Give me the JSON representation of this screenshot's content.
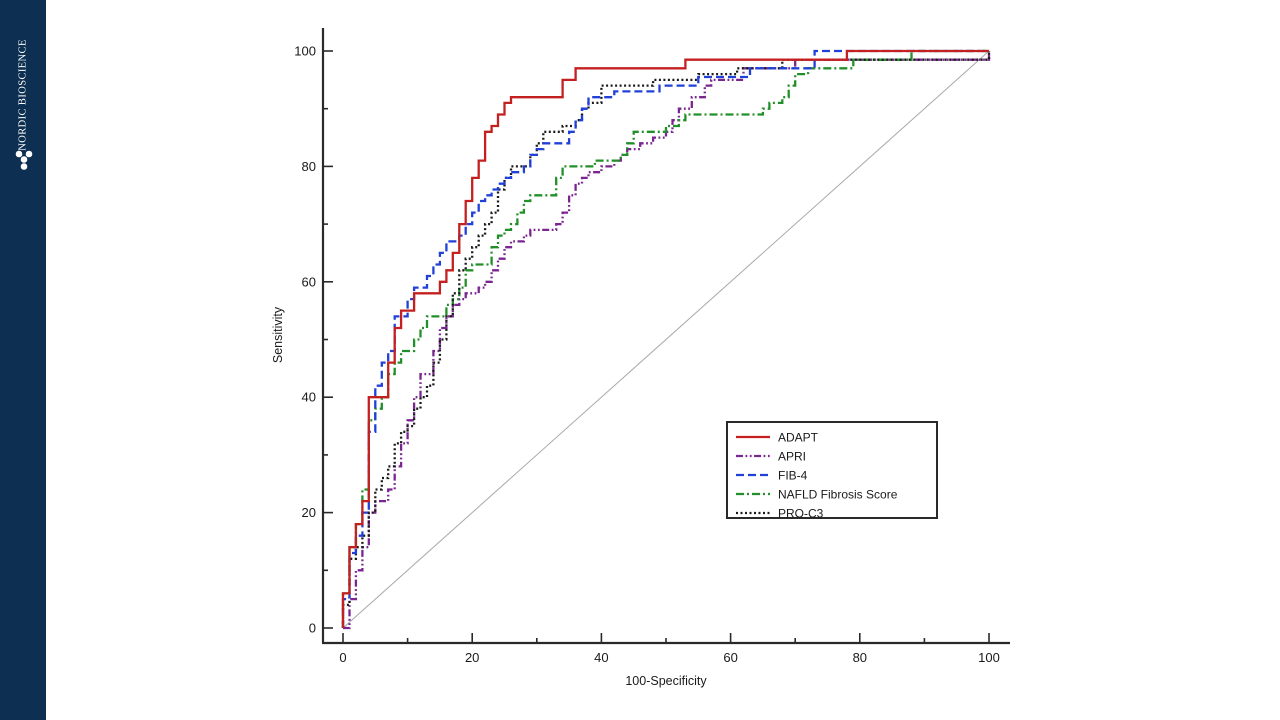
{
  "sidebar": {
    "brand": "NORDIC BIOSCIENCE",
    "logo_icon": "molecule-logo-icon",
    "background": "#0c2f52"
  },
  "chart_data": {
    "type": "line",
    "title": "",
    "xlabel": "100-Specificity",
    "ylabel": "Sensitivity",
    "xlim": [
      0,
      100
    ],
    "ylim": [
      0,
      100
    ],
    "xticks": [
      0,
      20,
      40,
      60,
      80,
      100
    ],
    "yticks": [
      0,
      20,
      40,
      60,
      80,
      100
    ],
    "legend": "bottom-right",
    "grid": false,
    "reference_line": {
      "from": [
        0,
        0
      ],
      "to": [
        100,
        100
      ],
      "color": "#a8a8a8"
    },
    "series": [
      {
        "name": "ADAPT",
        "color": "#c42020",
        "dash": "solid",
        "step": true,
        "points": [
          [
            0,
            0
          ],
          [
            0,
            6
          ],
          [
            1,
            14
          ],
          [
            2,
            18
          ],
          [
            3,
            22
          ],
          [
            4,
            30
          ],
          [
            4,
            38
          ],
          [
            4,
            40
          ],
          [
            6,
            40
          ],
          [
            7,
            46
          ],
          [
            8,
            52
          ],
          [
            9,
            55
          ],
          [
            10,
            55
          ],
          [
            11,
            58
          ],
          [
            14,
            58
          ],
          [
            15,
            60
          ],
          [
            16,
            62
          ],
          [
            17,
            65
          ],
          [
            18,
            70
          ],
          [
            19,
            74
          ],
          [
            20,
            78
          ],
          [
            21,
            81
          ],
          [
            22,
            86
          ],
          [
            23,
            87
          ],
          [
            24,
            89
          ],
          [
            25,
            91
          ],
          [
            26,
            92
          ],
          [
            34,
            92
          ],
          [
            34,
            95
          ],
          [
            36,
            97
          ],
          [
            53,
            97
          ],
          [
            53,
            98.5
          ],
          [
            78,
            98.5
          ],
          [
            78,
            100
          ],
          [
            100,
            100
          ]
        ]
      },
      {
        "name": "APRI",
        "color": "#7a2690",
        "dash": "dashdotdot",
        "step": true,
        "points": [
          [
            0,
            0
          ],
          [
            1,
            2
          ],
          [
            1,
            5
          ],
          [
            2,
            10
          ],
          [
            3,
            14
          ],
          [
            4,
            16
          ],
          [
            4,
            20
          ],
          [
            5,
            22
          ],
          [
            7,
            24
          ],
          [
            8,
            28
          ],
          [
            9,
            32
          ],
          [
            10,
            36
          ],
          [
            11,
            40
          ],
          [
            12,
            44
          ],
          [
            14,
            46
          ],
          [
            14,
            48
          ],
          [
            15,
            52
          ],
          [
            16,
            54
          ],
          [
            17,
            56
          ],
          [
            18,
            57
          ],
          [
            19,
            58
          ],
          [
            21,
            59
          ],
          [
            22,
            60
          ],
          [
            23,
            62
          ],
          [
            24,
            64
          ],
          [
            25,
            66
          ],
          [
            26,
            67
          ],
          [
            28,
            68
          ],
          [
            29,
            69
          ],
          [
            33,
            70
          ],
          [
            34,
            72
          ],
          [
            35,
            75
          ],
          [
            36,
            77
          ],
          [
            37,
            78
          ],
          [
            38,
            79
          ],
          [
            40,
            80
          ],
          [
            42,
            81
          ],
          [
            43,
            82
          ],
          [
            44,
            83
          ],
          [
            46,
            84
          ],
          [
            48,
            85
          ],
          [
            50,
            86
          ],
          [
            51,
            88
          ],
          [
            52,
            90
          ],
          [
            54,
            92
          ],
          [
            56,
            94
          ],
          [
            57,
            95
          ],
          [
            62,
            95
          ],
          [
            62,
            97
          ],
          [
            70,
            97
          ],
          [
            70,
            98.5
          ],
          [
            100,
            98.5
          ],
          [
            100,
            100
          ]
        ]
      },
      {
        "name": "FIB-4",
        "color": "#2040d8",
        "dash": "dash",
        "step": true,
        "points": [
          [
            0,
            0
          ],
          [
            0,
            5
          ],
          [
            1,
            10
          ],
          [
            1,
            13
          ],
          [
            2,
            16
          ],
          [
            3,
            20
          ],
          [
            4,
            26
          ],
          [
            4,
            34
          ],
          [
            5,
            36
          ],
          [
            5,
            42
          ],
          [
            6,
            46
          ],
          [
            7,
            48
          ],
          [
            8,
            52
          ],
          [
            8,
            54
          ],
          [
            10,
            55
          ],
          [
            10,
            57
          ],
          [
            11,
            59
          ],
          [
            13,
            61
          ],
          [
            14,
            63
          ],
          [
            15,
            65
          ],
          [
            16,
            67
          ],
          [
            18,
            68
          ],
          [
            19,
            70
          ],
          [
            20,
            72
          ],
          [
            21,
            74
          ],
          [
            22,
            75
          ],
          [
            23,
            76
          ],
          [
            24,
            77
          ],
          [
            25,
            78
          ],
          [
            26,
            79
          ],
          [
            28,
            80
          ],
          [
            29,
            82
          ],
          [
            30,
            83
          ],
          [
            31,
            84
          ],
          [
            34,
            84
          ],
          [
            35,
            86
          ],
          [
            36,
            88
          ],
          [
            37,
            90
          ],
          [
            38,
            92
          ],
          [
            41,
            92
          ],
          [
            42,
            93
          ],
          [
            48,
            93
          ],
          [
            49,
            94
          ],
          [
            55,
            94
          ],
          [
            55,
            95.5
          ],
          [
            63,
            95.5
          ],
          [
            63,
            97
          ],
          [
            73,
            97
          ],
          [
            73,
            100
          ],
          [
            100,
            100
          ]
        ]
      },
      {
        "name": "NAFLD Fibrosis Score",
        "color": "#22902a",
        "dash": "dashdot",
        "step": true,
        "points": [
          [
            0,
            0
          ],
          [
            0,
            6
          ],
          [
            1,
            14
          ],
          [
            2,
            18
          ],
          [
            3,
            24
          ],
          [
            4,
            32
          ],
          [
            4,
            36
          ],
          [
            5,
            38
          ],
          [
            6,
            40
          ],
          [
            7,
            44
          ],
          [
            8,
            46
          ],
          [
            9,
            48
          ],
          [
            11,
            50
          ],
          [
            12,
            52
          ],
          [
            13,
            54
          ],
          [
            15,
            54
          ],
          [
            16,
            56
          ],
          [
            17,
            57
          ],
          [
            18,
            59
          ],
          [
            19,
            62
          ],
          [
            20,
            63
          ],
          [
            23,
            63
          ],
          [
            23,
            66
          ],
          [
            24,
            68
          ],
          [
            25,
            69
          ],
          [
            26,
            70
          ],
          [
            27,
            72
          ],
          [
            28,
            74
          ],
          [
            29,
            75
          ],
          [
            32,
            75
          ],
          [
            33,
            78
          ],
          [
            34,
            80
          ],
          [
            38,
            80
          ],
          [
            39,
            81
          ],
          [
            43,
            81
          ],
          [
            43,
            82
          ],
          [
            44,
            84
          ],
          [
            45,
            86
          ],
          [
            49,
            86
          ],
          [
            50,
            87
          ],
          [
            52,
            88
          ],
          [
            53,
            89
          ],
          [
            65,
            89
          ],
          [
            65,
            90
          ],
          [
            66,
            91
          ],
          [
            68,
            92
          ],
          [
            69,
            94
          ],
          [
            70,
            96
          ],
          [
            72,
            97
          ],
          [
            78,
            97
          ],
          [
            79,
            98.5
          ],
          [
            88,
            98.5
          ],
          [
            88,
            100
          ],
          [
            100,
            100
          ]
        ]
      },
      {
        "name": "PRO-C3",
        "color": "#1a1a1a",
        "dash": "dot",
        "step": true,
        "points": [
          [
            0,
            0
          ],
          [
            0,
            4
          ],
          [
            1,
            8
          ],
          [
            1,
            12
          ],
          [
            2,
            14
          ],
          [
            3,
            16
          ],
          [
            4,
            20
          ],
          [
            5,
            24
          ],
          [
            6,
            26
          ],
          [
            7,
            28
          ],
          [
            8,
            32
          ],
          [
            9,
            34
          ],
          [
            10,
            35
          ],
          [
            11,
            38
          ],
          [
            12,
            40
          ],
          [
            13,
            42
          ],
          [
            14,
            46
          ],
          [
            15,
            50
          ],
          [
            16,
            54
          ],
          [
            17,
            58
          ],
          [
            18,
            62
          ],
          [
            19,
            64
          ],
          [
            20,
            66
          ],
          [
            21,
            68
          ],
          [
            22,
            70
          ],
          [
            23,
            72
          ],
          [
            24,
            76
          ],
          [
            25,
            78
          ],
          [
            26,
            80
          ],
          [
            28,
            80
          ],
          [
            29,
            82
          ],
          [
            30,
            84
          ],
          [
            31,
            86
          ],
          [
            33,
            86
          ],
          [
            34,
            87
          ],
          [
            36,
            88
          ],
          [
            37,
            90
          ],
          [
            38,
            91
          ],
          [
            40,
            92
          ],
          [
            40,
            94
          ],
          [
            47,
            94
          ],
          [
            48,
            95
          ],
          [
            54,
            95
          ],
          [
            55,
            96
          ],
          [
            60,
            96
          ],
          [
            61,
            97
          ],
          [
            67,
            97
          ],
          [
            68,
            98.5
          ],
          [
            100,
            98.5
          ],
          [
            100,
            100
          ]
        ]
      }
    ]
  }
}
